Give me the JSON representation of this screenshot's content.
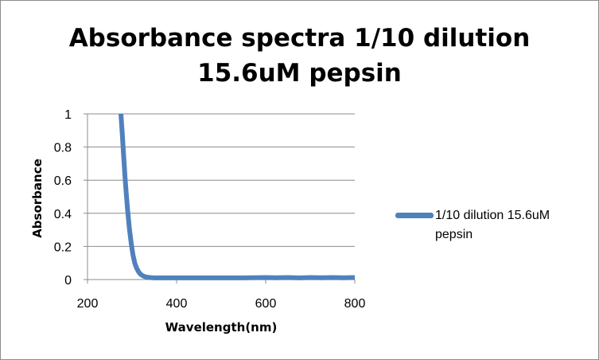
{
  "colors": {
    "series": "#4f81bd",
    "grid": "#8c8c8c",
    "axis": "#8c8c8c",
    "frame": "#8c8c8c"
  },
  "chart_data": {
    "type": "line",
    "title_lines": [
      "Absorbance spectra 1/10 dilution",
      "15.6uM pepsin"
    ],
    "xlabel": "Wavelength(nm)",
    "ylabel": "Absorbance",
    "xlim": [
      200,
      800
    ],
    "ylim": [
      0,
      1
    ],
    "xticks": [
      200,
      400,
      600,
      800
    ],
    "yticks": [
      0,
      0.2,
      0.4,
      0.6,
      0.8,
      1
    ],
    "xtick_labels": [
      "200",
      "400",
      "600",
      "800"
    ],
    "ytick_labels": [
      "0",
      "0.2",
      "0.4",
      "0.6",
      "0.8",
      "1"
    ],
    "grid": "horizontal",
    "legend_position": "right",
    "series": [
      {
        "name": "1/10 dilution 15.6uM pepsin",
        "x": [
          275,
          278,
          281,
          284,
          287,
          290,
          294,
          298,
          302,
          306,
          310,
          315,
          320,
          326,
          332,
          340,
          350,
          375,
          400,
          450,
          500,
          550,
          600,
          625,
          650,
          675,
          700,
          725,
          750,
          775,
          800
        ],
        "y": [
          1.0,
          0.88,
          0.75,
          0.63,
          0.52,
          0.42,
          0.31,
          0.22,
          0.15,
          0.1,
          0.07,
          0.045,
          0.03,
          0.02,
          0.015,
          0.012,
          0.01,
          0.01,
          0.01,
          0.01,
          0.01,
          0.01,
          0.012,
          0.011,
          0.012,
          0.01,
          0.012,
          0.011,
          0.012,
          0.011,
          0.012
        ]
      }
    ]
  }
}
